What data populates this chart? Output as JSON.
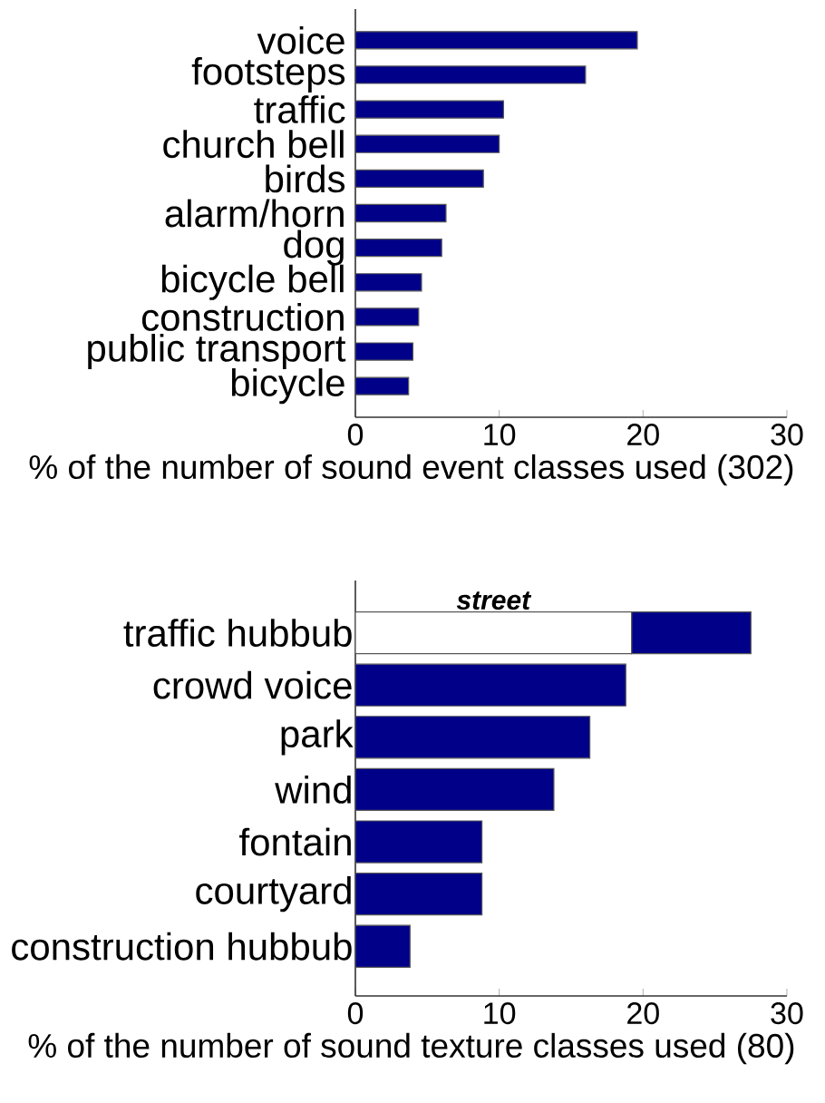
{
  "chart_data": [
    {
      "type": "bar",
      "orientation": "horizontal",
      "categories": [
        "voice",
        "footsteps",
        "traffic",
        "church bell",
        "birds",
        "alarm/horn",
        "dog",
        "bicycle bell",
        "construction",
        "public transport",
        "bicycle"
      ],
      "values": [
        19.6,
        16.0,
        10.3,
        10.0,
        8.9,
        6.3,
        6.0,
        4.6,
        4.4,
        4.0,
        3.7
      ],
      "color": "#000088",
      "xlim": [
        0,
        30
      ],
      "xticks": [
        0,
        10,
        20,
        30
      ],
      "xlabel": "% of the number of sound event classes used (302)"
    },
    {
      "type": "bar",
      "orientation": "horizontal",
      "stacked": true,
      "categories": [
        "traffic hubbub",
        "crowd voice",
        "park",
        "wind",
        "fontain",
        "courtyard",
        "construction hubbub"
      ],
      "series": [
        {
          "name": "street",
          "color": "#ffffff",
          "values": [
            19.2,
            null,
            null,
            null,
            null,
            null,
            null
          ]
        },
        {
          "color": "#000088",
          "values": [
            8.3,
            18.8,
            16.3,
            13.8,
            8.8,
            8.8,
            3.8
          ]
        }
      ],
      "xlim": [
        0,
        30
      ],
      "xticks": [
        0,
        10,
        20,
        30
      ],
      "xlabel": "% of the number of sound texture classes used (80)"
    }
  ]
}
